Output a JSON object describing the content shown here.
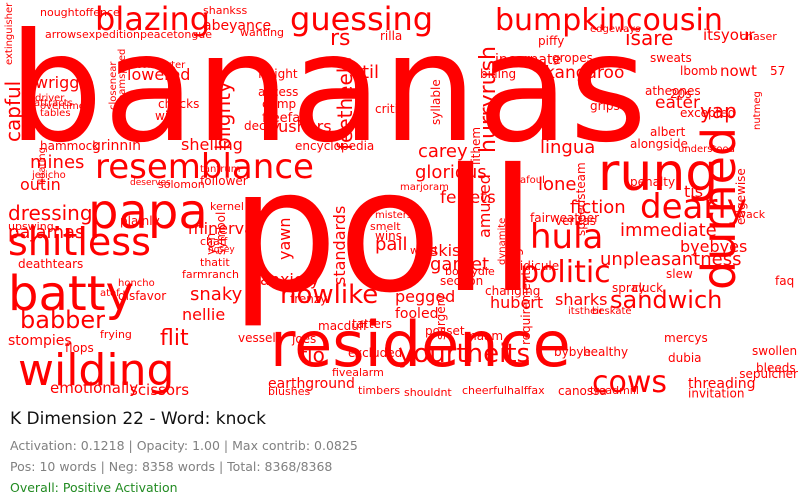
{
  "colors": {
    "word": "#ff0000",
    "title": "#111111",
    "stats": "#808080",
    "positive": "#228b22"
  },
  "header": {
    "title": "K Dimension 22 - Word: knock",
    "activation_label": "Activation:",
    "activation": "0.1218",
    "opacity_label": "Opacity:",
    "opacity": "1.00",
    "max_contrib_label": "Max contrib:",
    "max_contrib": "0.0825",
    "pos_label": "Pos:",
    "pos": "10 words",
    "neg_label": "Neg:",
    "neg": "8358 words",
    "total_label": "Total:",
    "total": "8368/8368",
    "overall": "Overall: Positive Activation"
  },
  "chart_data": {
    "type": "wordcloud",
    "words": [
      "bananas",
      "poll",
      "residence",
      "wilding",
      "batty",
      "papa",
      "resemblance",
      "blazing",
      "guessing",
      "bumpkincousin",
      "rung",
      "durned",
      "dearly",
      "shitless",
      "hula",
      "politic",
      "howlike",
      "sandwich",
      "babber",
      "yourtheits",
      "cows",
      "mines",
      "glorious",
      "ferrets",
      "kangaroo",
      "eater",
      "yap",
      "lowered",
      "feetheels",
      "til",
      "rs",
      "isare",
      "hurryrush",
      "pushers",
      "blighty",
      "capful",
      "shelling",
      "grinnin",
      "encyclopedia",
      "lingua",
      "carey",
      "tis",
      "lone",
      "fiction",
      "amused",
      "pail",
      "garnet",
      "wins",
      "standards",
      "yawn",
      "minerva",
      "dressing",
      "pajamas",
      "outin",
      "snaky",
      "nellie",
      "flit",
      "stompies",
      "flo",
      "joes",
      "anxiety",
      "pegged",
      "hubert",
      "sharks",
      "unpleasantness",
      "byebyes",
      "immediate",
      "speedsteam",
      "tiddiers",
      "indignation",
      "fooled",
      "posset",
      "excluded",
      "earthground",
      "emotionally",
      "scissors",
      "threading",
      "invitation",
      "requirements",
      "canossa",
      "mercys",
      "dubia",
      "swollen",
      "bleeds",
      "sepulcher",
      "faq",
      "wack",
      "healthy",
      "skis",
      "lithem",
      "alongside",
      "understood",
      "albert",
      "excepted",
      "atheones",
      "lbomb",
      "nowt",
      "grips",
      "chaser",
      "itsyour",
      "sweats",
      "edgeways",
      "incarnate",
      "noughtoffence",
      "arrows",
      "expedition",
      "peacetongue",
      "shankss",
      "abeyance",
      "wanting",
      "rilla",
      "fairweather",
      "ridicule",
      "bobsydie",
      "ward",
      "smelt",
      "misters",
      "marjoram",
      "afoul",
      "veritas",
      "penalty",
      "changing",
      "section",
      "deathtears",
      "upswing",
      "plainly",
      "solomon",
      "follower",
      "kernel",
      "tantrum",
      "farmranch",
      "disfavor",
      "frying",
      "vessel",
      "honcho",
      "atof",
      "chaff",
      "thatit",
      "hosey",
      "deserves",
      "chocks",
      "wily",
      "crimp",
      "freefall",
      "freight",
      "access",
      "comforter",
      "driver",
      "overtime",
      "attracts",
      "tables",
      "wriggle",
      "extinguisher",
      "closenear",
      "steamspeed",
      "billing",
      "critic",
      "syllable",
      "surgery",
      "maam",
      "blushes",
      "fivealarm",
      "timbers",
      "shouldnt",
      "cheerfulhalffax",
      "treadmill",
      "jericho",
      "hammock",
      "floating",
      "flops",
      "yen",
      "symbol",
      "macduff",
      "bybye",
      "spray",
      "cluck",
      "itstheir",
      "beskate",
      "dynamite",
      "decay",
      "piffy",
      "gropes",
      "slew",
      "20s",
      "57",
      "nutmeg",
      "edgewise",
      "tatters",
      "frenzy"
    ]
  }
}
